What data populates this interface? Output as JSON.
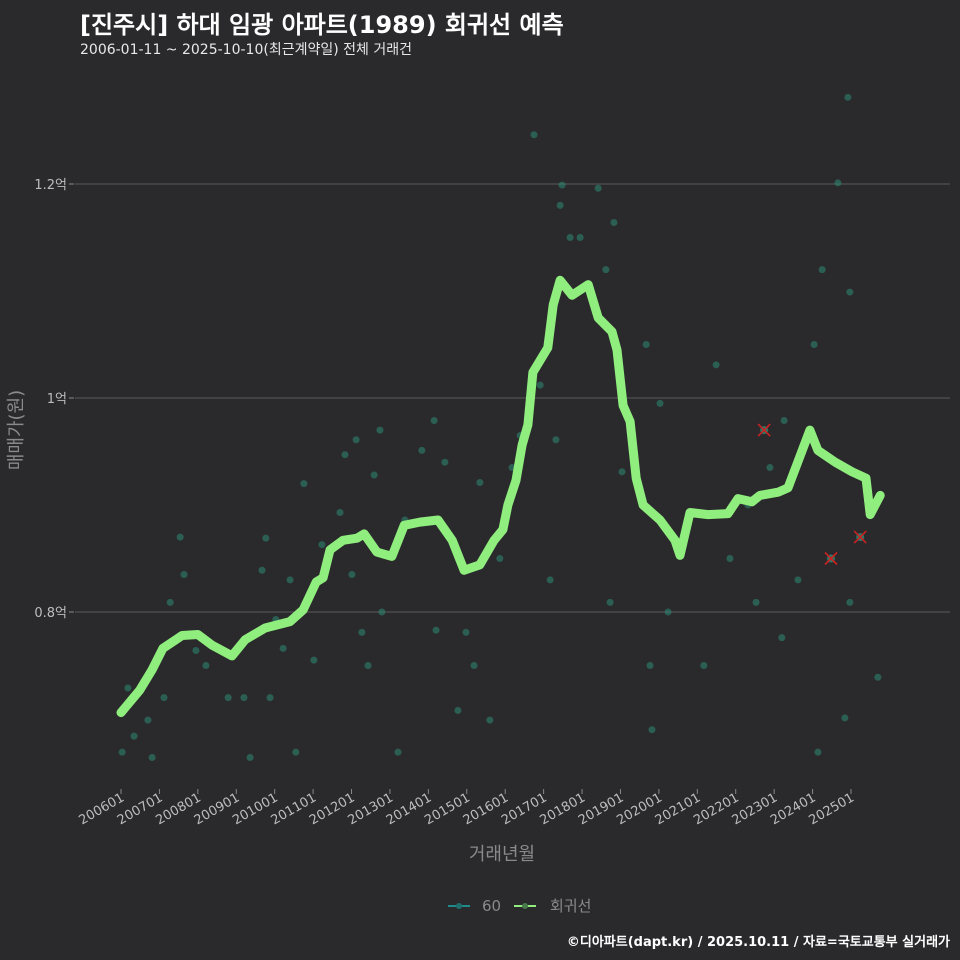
{
  "header": {
    "title": "[진주시] 하대 임광 아파트(1989) 회귀선 예측",
    "subtitle": "2006-01-11 ~ 2025-10-10(최근계약일) 전체 거래건"
  },
  "footer": "©디아파트(dapt.kr) / 2025.10.11 / 자료=국토교통부 실거래가",
  "colors": {
    "background": "#2a2a2c",
    "line": "#90ee7e",
    "points": "#2e8b74",
    "outlier": "#cc2222",
    "grid": "#5a5a5a"
  },
  "chart_data": {
    "type": "scatter",
    "title": "[진주시] 하대 임광 아파트(1989) 회귀선 예측",
    "xlabel": "거래년월",
    "ylabel": "매매가(원)",
    "xlim": [
      2005.95,
      2025.95
    ],
    "ylim": [
      0.645,
      1.29
    ],
    "x_ticks": [
      2006,
      2007,
      2008,
      2009,
      2010,
      2011,
      2012,
      2013,
      2014,
      2015,
      2016,
      2017,
      2018,
      2019,
      2020,
      2021,
      2022,
      2023,
      2024,
      2025
    ],
    "x_tick_labels": [
      "200601",
      "200701",
      "200801",
      "200901",
      "201001",
      "201101",
      "201201",
      "201301",
      "201401",
      "201501",
      "201601",
      "201701",
      "201801",
      "201901",
      "202001",
      "202101",
      "202201",
      "202301",
      "202401",
      "202501"
    ],
    "y_ticks": [
      0.8,
      1.0,
      1.2
    ],
    "y_tick_labels": [
      "0.8억",
      "1억",
      "1.2억"
    ],
    "legend": {
      "position": "bottom",
      "entries": [
        "60",
        "회귀선"
      ]
    },
    "series": [
      {
        "name": "60",
        "type": "scatter",
        "points": [
          [
            2006.03,
            0.669
          ],
          [
            2006.18,
            0.729
          ],
          [
            2006.34,
            0.684
          ],
          [
            2006.7,
            0.699
          ],
          [
            2006.81,
            0.664
          ],
          [
            2007.12,
            0.72
          ],
          [
            2007.28,
            0.809
          ],
          [
            2007.54,
            0.87
          ],
          [
            2007.64,
            0.835
          ],
          [
            2007.95,
            0.764
          ],
          [
            2008.21,
            0.75
          ],
          [
            2008.79,
            0.72
          ],
          [
            2009.2,
            0.72
          ],
          [
            2009.36,
            0.664
          ],
          [
            2009.67,
            0.839
          ],
          [
            2009.77,
            0.869
          ],
          [
            2009.88,
            0.72
          ],
          [
            2010.03,
            0.793
          ],
          [
            2010.22,
            0.766
          ],
          [
            2010.4,
            0.83
          ],
          [
            2010.55,
            0.669
          ],
          [
            2010.76,
            0.92
          ],
          [
            2011.02,
            0.755
          ],
          [
            2011.23,
            0.863
          ],
          [
            2011.7,
            0.893
          ],
          [
            2011.83,
            0.947
          ],
          [
            2012.01,
            0.835
          ],
          [
            2012.12,
            0.961
          ],
          [
            2012.27,
            0.781
          ],
          [
            2012.43,
            0.75
          ],
          [
            2012.59,
            0.928
          ],
          [
            2012.74,
            0.97
          ],
          [
            2012.79,
            0.8
          ],
          [
            2013.21,
            0.669
          ],
          [
            2013.39,
            0.886
          ],
          [
            2013.83,
            0.951
          ],
          [
            2014.15,
            0.979
          ],
          [
            2014.2,
            0.783
          ],
          [
            2014.43,
            0.94
          ],
          [
            2014.77,
            0.708
          ],
          [
            2014.98,
            0.781
          ],
          [
            2015.19,
            0.75
          ],
          [
            2015.34,
            0.921
          ],
          [
            2015.6,
            0.699
          ],
          [
            2015.86,
            0.85
          ],
          [
            2016.18,
            0.935
          ],
          [
            2016.39,
            0.965
          ],
          [
            2016.75,
            1.246
          ],
          [
            2016.91,
            1.012
          ],
          [
            2017.17,
            0.83
          ],
          [
            2017.32,
            0.961
          ],
          [
            2017.43,
            1.18
          ],
          [
            2017.48,
            1.199
          ],
          [
            2017.69,
            1.15
          ],
          [
            2017.95,
            1.15
          ],
          [
            2018.42,
            1.196
          ],
          [
            2018.62,
            1.12
          ],
          [
            2018.73,
            0.809
          ],
          [
            2018.83,
            1.164
          ],
          [
            2019.04,
            0.931
          ],
          [
            2019.67,
            1.05
          ],
          [
            2019.77,
            0.75
          ],
          [
            2019.82,
            0.69
          ],
          [
            2020.03,
            0.995
          ],
          [
            2020.24,
            0.8
          ],
          [
            2021.17,
            0.75
          ],
          [
            2021.49,
            1.031
          ],
          [
            2021.85,
            0.85
          ],
          [
            2022.32,
            0.9
          ],
          [
            2022.53,
            0.809
          ],
          [
            2022.89,
            0.935
          ],
          [
            2023.2,
            0.776
          ],
          [
            2023.26,
            0.979
          ],
          [
            2023.62,
            0.83
          ],
          [
            2024.04,
            1.05
          ],
          [
            2024.14,
            0.669
          ],
          [
            2024.25,
            1.12
          ],
          [
            2024.66,
            1.201
          ],
          [
            2024.84,
            0.701
          ],
          [
            2024.92,
            1.281
          ],
          [
            2024.97,
            1.099
          ],
          [
            2024.97,
            0.809
          ],
          [
            2025.7,
            0.739
          ]
        ]
      },
      {
        "name": "outliers",
        "type": "scatter",
        "points": [
          [
            2022.74,
            0.97
          ],
          [
            2024.48,
            0.85
          ],
          [
            2025.24,
            0.87
          ]
        ]
      },
      {
        "name": "회귀선",
        "type": "line",
        "points": [
          [
            2006.0,
            0.706
          ],
          [
            2006.49,
            0.727
          ],
          [
            2006.81,
            0.746
          ],
          [
            2007.09,
            0.766
          ],
          [
            2007.59,
            0.778
          ],
          [
            2008.0,
            0.779
          ],
          [
            2008.37,
            0.769
          ],
          [
            2008.89,
            0.759
          ],
          [
            2009.23,
            0.774
          ],
          [
            2009.75,
            0.785
          ],
          [
            2010.4,
            0.791
          ],
          [
            2010.74,
            0.802
          ],
          [
            2011.08,
            0.828
          ],
          [
            2011.26,
            0.832
          ],
          [
            2011.44,
            0.858
          ],
          [
            2011.78,
            0.867
          ],
          [
            2012.14,
            0.869
          ],
          [
            2012.33,
            0.873
          ],
          [
            2012.66,
            0.856
          ],
          [
            2013.05,
            0.852
          ],
          [
            2013.37,
            0.881
          ],
          [
            2013.78,
            0.884
          ],
          [
            2014.25,
            0.886
          ],
          [
            2014.62,
            0.867
          ],
          [
            2014.93,
            0.839
          ],
          [
            2015.34,
            0.844
          ],
          [
            2015.71,
            0.867
          ],
          [
            2015.94,
            0.877
          ],
          [
            2016.07,
            0.9
          ],
          [
            2016.28,
            0.923
          ],
          [
            2016.44,
            0.956
          ],
          [
            2016.59,
            0.975
          ],
          [
            2016.72,
            1.024
          ],
          [
            2017.11,
            1.047
          ],
          [
            2017.25,
            1.087
          ],
          [
            2017.43,
            1.11
          ],
          [
            2017.74,
            1.096
          ],
          [
            2018.16,
            1.106
          ],
          [
            2018.42,
            1.075
          ],
          [
            2018.78,
            1.062
          ],
          [
            2018.91,
            1.045
          ],
          [
            2019.07,
            0.993
          ],
          [
            2019.25,
            0.978
          ],
          [
            2019.41,
            0.925
          ],
          [
            2019.59,
            0.9
          ],
          [
            2020.03,
            0.886
          ],
          [
            2020.42,
            0.867
          ],
          [
            2020.55,
            0.853
          ],
          [
            2020.81,
            0.893
          ],
          [
            2021.28,
            0.891
          ],
          [
            2021.8,
            0.892
          ],
          [
            2022.06,
            0.906
          ],
          [
            2022.42,
            0.903
          ],
          [
            2022.63,
            0.909
          ],
          [
            2023.1,
            0.912
          ],
          [
            2023.36,
            0.916
          ],
          [
            2023.54,
            0.933
          ],
          [
            2023.93,
            0.97
          ],
          [
            2024.14,
            0.951
          ],
          [
            2024.59,
            0.94
          ],
          [
            2025.03,
            0.931
          ],
          [
            2025.39,
            0.925
          ],
          [
            2025.5,
            0.891
          ],
          [
            2025.76,
            0.909
          ]
        ]
      }
    ]
  }
}
